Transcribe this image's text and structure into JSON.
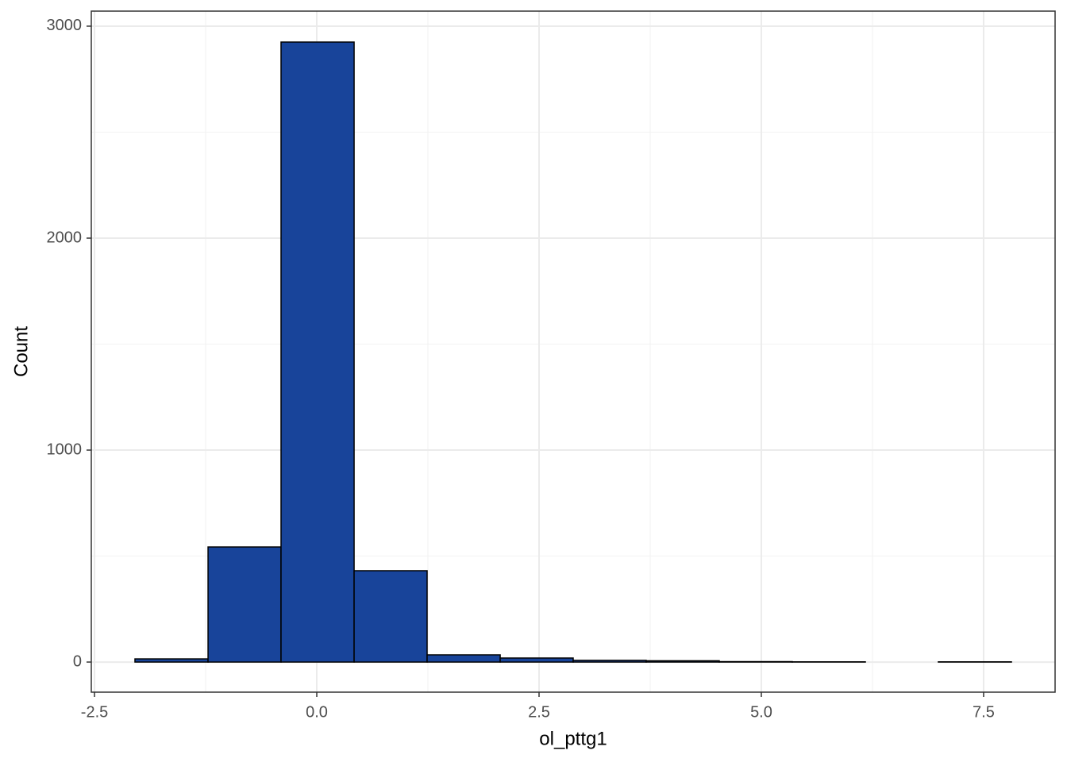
{
  "chart_data": {
    "type": "histogram",
    "xlabel": "ol_pttg1",
    "ylabel": "Count",
    "bins": [
      -2.045,
      -1.223,
      -0.402,
      0.42,
      1.241,
      2.063,
      2.884,
      3.705,
      4.527,
      5.348,
      6.17,
      6.991,
      7.813
    ],
    "counts": [
      15,
      543,
      2925,
      431,
      34,
      19,
      8,
      6,
      2,
      1,
      0,
      1
    ],
    "color": "#18449a",
    "xlim": [
      -2.536,
      8.304
    ],
    "ylim": [
      -142,
      3071
    ],
    "xticks": [
      -2.5,
      {
        "value": 0,
        "label": "0.0"
      },
      2.5,
      {
        "value": 5,
        "label": "5.0"
      },
      7.5
    ],
    "yticks": [
      0,
      1000,
      2000,
      3000
    ],
    "xminor": [
      -1.25,
      1.25,
      3.75,
      6.25
    ],
    "yminor": [
      500,
      1500,
      2500
    ],
    "grid": true
  }
}
